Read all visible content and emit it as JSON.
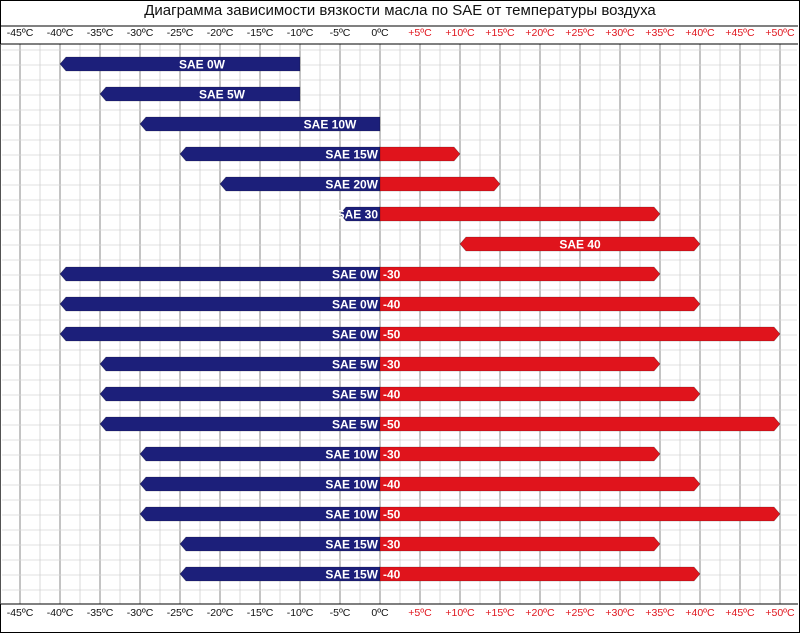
{
  "chart_data": {
    "type": "bar",
    "title": "Диаграмма зависимости вязкости масла по SAE от температуры воздуха",
    "x_ticks": [
      "-45ºC",
      "-40ºC",
      "-35ºC",
      "-30ºC",
      "-25ºC",
      "-20ºC",
      "-15ºC",
      "-10ºC",
      "-5ºC",
      "0ºC",
      "+5ºC",
      "+10ºC",
      "+15ºC",
      "+20ºC",
      "+25ºC",
      "+30ºC",
      "+35ºC",
      "+40ºC",
      "+45ºC",
      "+50ºC"
    ],
    "xlim": [
      -45,
      50
    ],
    "grid": true,
    "colors": {
      "negative": "#1c1f7a",
      "positive": "#e0141c"
    },
    "series": [
      {
        "label": "SAE 0W",
        "min": -40,
        "max": -10
      },
      {
        "label": "SAE 5W",
        "min": -35,
        "max": -10
      },
      {
        "label": "SAE 10W",
        "min": -30,
        "max": 0
      },
      {
        "label": "SAE 15W",
        "min": -25,
        "max": 10
      },
      {
        "label": "SAE 20W",
        "min": -20,
        "max": 15
      },
      {
        "label": "SAE 30",
        "min": -5,
        "max": 35
      },
      {
        "label": "SAE 40",
        "min": 10,
        "max": 40
      },
      {
        "label": "SAE 0W",
        "label2": "-30",
        "min": -40,
        "max": 35
      },
      {
        "label": "SAE 0W",
        "label2": "-40",
        "min": -40,
        "max": 40
      },
      {
        "label": "SAE 0W",
        "label2": "-50",
        "min": -40,
        "max": 50
      },
      {
        "label": "SAE 5W",
        "label2": "-30",
        "min": -35,
        "max": 35
      },
      {
        "label": "SAE 5W",
        "label2": "-40",
        "min": -35,
        "max": 40
      },
      {
        "label": "SAE 5W",
        "label2": "-50",
        "min": -35,
        "max": 50
      },
      {
        "label": "SAE 10W",
        "label2": "-30",
        "min": -30,
        "max": 35
      },
      {
        "label": "SAE 10W",
        "label2": "-40",
        "min": -30,
        "max": 40
      },
      {
        "label": "SAE 10W",
        "label2": "-50",
        "min": -30,
        "max": 50
      },
      {
        "label": "SAE 15W",
        "label2": "-30",
        "min": -25,
        "max": 35
      },
      {
        "label": "SAE 15W",
        "label2": "-40",
        "min": -25,
        "max": 40
      }
    ]
  }
}
